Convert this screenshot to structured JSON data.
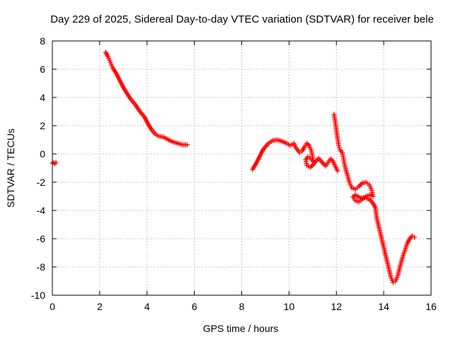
{
  "chart_data": {
    "type": "scatter",
    "title": "Day 229 of 2025, Sidereal Day-to-day VTEC variation (SDTVAR) for receiver bele",
    "xlabel": "GPS time / hours",
    "ylabel": "SDTVAR / TECUs",
    "xlim": [
      0,
      16
    ],
    "ylim": [
      -10,
      8
    ],
    "xticks": [
      0,
      2,
      4,
      6,
      8,
      10,
      12,
      14,
      16
    ],
    "yticks": [
      -10,
      -8,
      -6,
      -4,
      -2,
      0,
      2,
      4,
      6,
      8
    ],
    "grid": true,
    "marker": "plus",
    "color": "#ff0000",
    "series": [
      {
        "name": "SDTVAR",
        "segments": [
          [
            [
              0.0,
              -0.65
            ],
            [
              0.05,
              -0.6
            ],
            [
              0.1,
              -0.7
            ],
            [
              0.15,
              -0.6
            ]
          ],
          [
            [
              2.25,
              7.2
            ],
            [
              2.35,
              6.9
            ],
            [
              2.45,
              6.5
            ],
            [
              2.55,
              6.1
            ],
            [
              2.7,
              5.7
            ],
            [
              2.85,
              5.2
            ],
            [
              3.0,
              4.7
            ],
            [
              3.15,
              4.3
            ],
            [
              3.3,
              3.9
            ],
            [
              3.5,
              3.5
            ],
            [
              3.7,
              3.0
            ],
            [
              3.9,
              2.6
            ],
            [
              4.05,
              2.1
            ],
            [
              4.2,
              1.7
            ],
            [
              4.35,
              1.4
            ],
            [
              4.5,
              1.25
            ],
            [
              4.7,
              1.2
            ],
            [
              4.9,
              1.0
            ],
            [
              5.1,
              0.85
            ],
            [
              5.3,
              0.75
            ],
            [
              5.5,
              0.65
            ],
            [
              5.7,
              0.65
            ]
          ],
          [
            [
              8.45,
              -1.1
            ],
            [
              8.6,
              -0.7
            ],
            [
              8.75,
              -0.2
            ],
            [
              8.9,
              0.3
            ],
            [
              9.1,
              0.7
            ],
            [
              9.3,
              0.95
            ],
            [
              9.5,
              1.0
            ],
            [
              9.7,
              0.9
            ],
            [
              9.9,
              0.75
            ],
            [
              10.05,
              0.6
            ],
            [
              10.2,
              0.75
            ],
            [
              10.3,
              0.4
            ],
            [
              10.45,
              0.1
            ],
            [
              10.55,
              0.2
            ],
            [
              10.65,
              0.5
            ],
            [
              10.75,
              0.75
            ],
            [
              10.85,
              0.6
            ],
            [
              10.95,
              0.2
            ],
            [
              11.0,
              -0.3
            ],
            [
              11.05,
              -0.7
            ],
            [
              10.9,
              -0.95
            ],
            [
              10.75,
              -0.8
            ],
            [
              10.7,
              -0.4
            ],
            [
              10.8,
              -0.2
            ],
            [
              10.95,
              -0.4
            ],
            [
              11.1,
              -0.6
            ],
            [
              11.25,
              -0.3
            ],
            [
              11.4,
              -0.6
            ],
            [
              11.55,
              -0.85
            ],
            [
              11.65,
              -0.6
            ],
            [
              11.75,
              -0.35
            ],
            [
              11.85,
              -0.5
            ],
            [
              11.95,
              -0.85
            ],
            [
              12.05,
              -1.2
            ]
          ],
          [
            [
              11.9,
              2.8
            ],
            [
              11.95,
              2.3
            ],
            [
              12.0,
              1.7
            ],
            [
              12.05,
              1.1
            ],
            [
              12.1,
              0.6
            ],
            [
              12.15,
              0.3
            ],
            [
              12.25,
              0.1
            ],
            [
              12.3,
              -0.3
            ],
            [
              12.35,
              -0.8
            ],
            [
              12.45,
              -1.4
            ],
            [
              12.55,
              -2.0
            ],
            [
              12.65,
              -2.4
            ],
            [
              12.8,
              -2.5
            ],
            [
              12.95,
              -2.3
            ],
            [
              13.1,
              -2.05
            ],
            [
              13.25,
              -2.0
            ],
            [
              13.4,
              -2.2
            ],
            [
              13.5,
              -2.6
            ],
            [
              13.55,
              -3.0
            ],
            [
              13.4,
              -2.9
            ],
            [
              13.25,
              -3.0
            ],
            [
              13.1,
              -3.2
            ],
            [
              12.95,
              -3.4
            ],
            [
              12.8,
              -3.3
            ],
            [
              12.7,
              -3.05
            ],
            [
              12.8,
              -2.9
            ],
            [
              13.0,
              -3.1
            ],
            [
              13.2,
              -3.1
            ],
            [
              13.4,
              -3.2
            ],
            [
              13.55,
              -3.5
            ],
            [
              13.65,
              -3.8
            ],
            [
              13.7,
              -4.5
            ],
            [
              13.8,
              -5.2
            ],
            [
              13.9,
              -5.9
            ],
            [
              14.0,
              -6.6
            ],
            [
              14.1,
              -7.3
            ],
            [
              14.2,
              -8.0
            ],
            [
              14.3,
              -8.7
            ],
            [
              14.4,
              -9.1
            ],
            [
              14.5,
              -9.0
            ],
            [
              14.6,
              -8.6
            ],
            [
              14.7,
              -7.9
            ],
            [
              14.8,
              -7.3
            ],
            [
              14.9,
              -6.8
            ],
            [
              15.0,
              -6.3
            ],
            [
              15.1,
              -6.0
            ],
            [
              15.2,
              -5.8
            ],
            [
              15.3,
              -5.9
            ]
          ]
        ]
      }
    ]
  }
}
